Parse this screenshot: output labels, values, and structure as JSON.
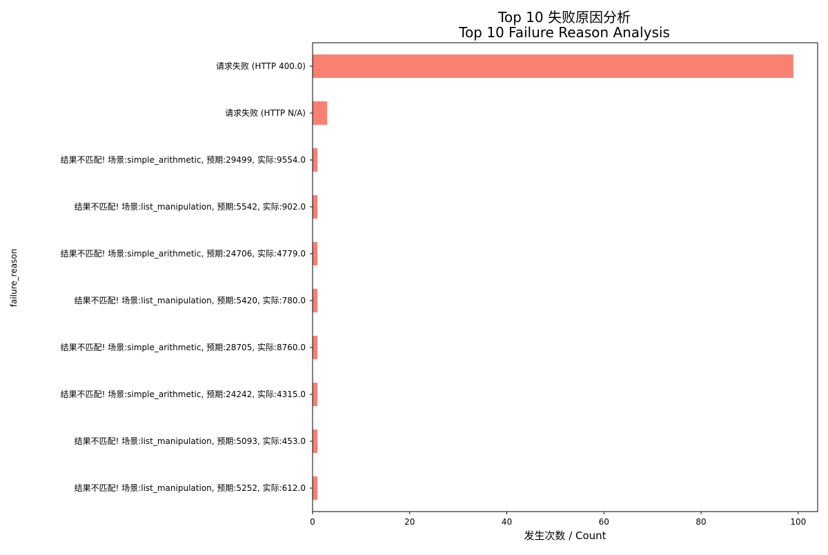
{
  "chart_data": {
    "type": "bar",
    "orientation": "horizontal",
    "title_line1": "Top 10 失败原因分析",
    "title_line2": "Top 10 Failure Reason Analysis",
    "xlabel": "发生次数 / Count",
    "ylabel": "failure_reason",
    "xlim": [
      0,
      104
    ],
    "xticks": [
      0,
      20,
      40,
      60,
      80,
      100
    ],
    "grid": false,
    "bar_color": "#fa8072",
    "categories": [
      "请求失败 (HTTP 400.0)",
      "请求失败 (HTTP N/A)",
      "结果不匹配! 场景:simple_arithmetic, 预期:29499, 实际:9554.0",
      "结果不匹配! 场景:list_manipulation, 预期:5542, 实际:902.0",
      "结果不匹配! 场景:simple_arithmetic, 预期:24706, 实际:4779.0",
      "结果不匹配! 场景:list_manipulation, 预期:5420, 实际:780.0",
      "结果不匹配! 场景:simple_arithmetic, 预期:28705, 实际:8760.0",
      "结果不匹配! 场景:simple_arithmetic, 预期:24242, 实际:4315.0",
      "结果不匹配! 场景:list_manipulation, 预期:5093, 实际:453.0",
      "结果不匹配! 场景:list_manipulation, 预期:5252, 实际:612.0"
    ],
    "values": [
      99,
      3,
      1,
      1,
      1,
      1,
      1,
      1,
      1,
      1
    ]
  }
}
